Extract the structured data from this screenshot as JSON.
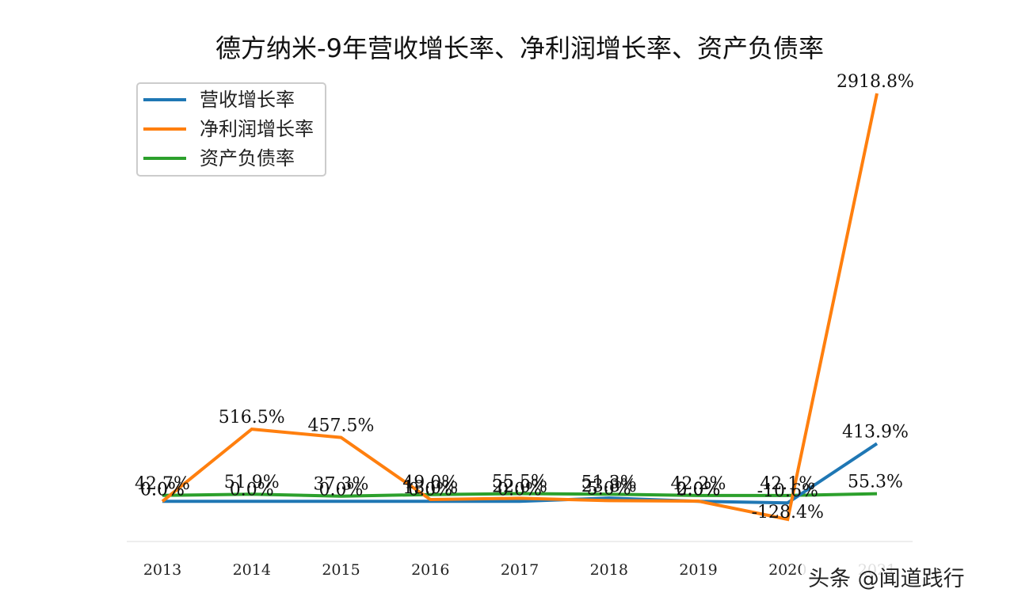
{
  "chart_data": {
    "type": "line",
    "title": "德方纳米-9年营收增长率、净利润增长率、资产负债率",
    "categories": [
      "2013",
      "2014",
      "2015",
      "2016",
      "2017",
      "2018",
      "2019",
      "2020",
      "2021"
    ],
    "series": [
      {
        "name": "营收增长率",
        "color": "#1f77b4",
        "values": [
          0.0,
          0.0,
          0.0,
          0.0,
          0.0,
          23.8,
          0.0,
          -10.6,
          413.9
        ],
        "labels": [
          "0.0%",
          "0.0%",
          "0.0%",
          "0.0%",
          "0.0%",
          "23.8%",
          "0.0%",
          "-10.6%",
          "413.9%"
        ]
      },
      {
        "name": "净利润增长率",
        "color": "#ff7f0e",
        "values": [
          0.0,
          516.5,
          457.5,
          13.0,
          22.0,
          5.0,
          2.0,
          -128.4,
          2918.8
        ],
        "labels": [
          "0.0%",
          "516.5%",
          "457.5%",
          "13.0%",
          "22.0%",
          "5.0%",
          "2.0%",
          "-128.4%",
          "2918.8%"
        ]
      },
      {
        "name": "资产负债率",
        "color": "#2ca02c",
        "values": [
          42.7,
          51.9,
          37.3,
          49.0,
          55.5,
          51.3,
          42.2,
          42.1,
          55.3
        ],
        "labels": [
          "42.7%",
          "51.9%",
          "37.3%",
          "49.0%",
          "55.5%",
          "51.3%",
          "42.2%",
          "42.1%",
          "55.3%"
        ]
      }
    ],
    "ylim": [
      -250,
      3150
    ],
    "grid": false,
    "legend": "upper-left"
  },
  "watermark": "头条 @闻道践行"
}
